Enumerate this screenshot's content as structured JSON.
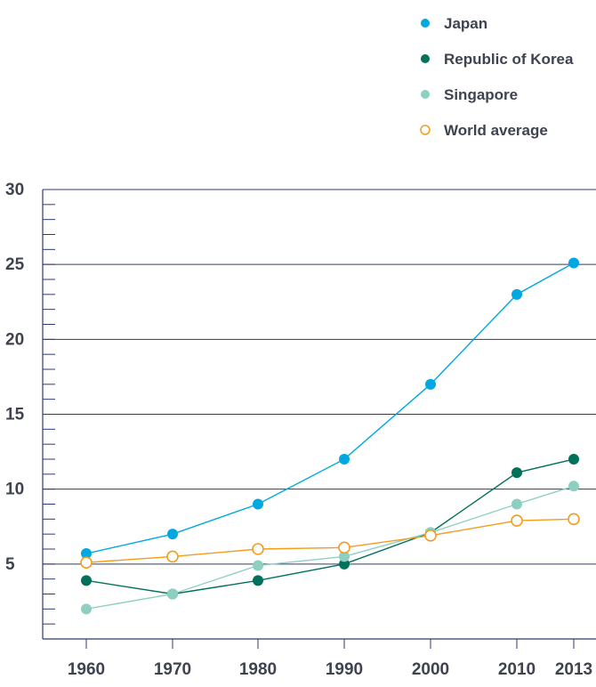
{
  "chart_data": {
    "type": "line",
    "title": "",
    "xlabel": "",
    "ylabel": "",
    "x": [
      1960,
      1970,
      1980,
      1990,
      2000,
      2010,
      2013
    ],
    "x_tick_labels": [
      "1960",
      "1970",
      "1980",
      "1990",
      "2000",
      "2010",
      "2013"
    ],
    "ylim": [
      0,
      30
    ],
    "y_ticks": [
      5,
      10,
      15,
      20,
      25,
      30
    ],
    "y_tick_labels": [
      "5",
      "10",
      "15",
      "20",
      "25",
      "30"
    ],
    "grid": "horizontal",
    "legend_position": "top-right",
    "series": [
      {
        "name": "Japan",
        "color": "#00a8e1",
        "marker": "filled",
        "values": [
          5.7,
          7.0,
          9.0,
          12.0,
          17.0,
          23.0,
          25.1
        ]
      },
      {
        "name": "Republic of Korea",
        "color": "#00715b",
        "marker": "filled",
        "values": [
          3.9,
          3.0,
          3.9,
          5.0,
          7.1,
          11.1,
          12.0
        ]
      },
      {
        "name": "Singapore",
        "color": "#8dd0c2",
        "marker": "filled",
        "values": [
          2.0,
          3.0,
          4.9,
          5.5,
          7.1,
          9.0,
          10.2
        ]
      },
      {
        "name": "World average",
        "color": "#f39c1e",
        "marker": "hollow",
        "values": [
          5.1,
          5.5,
          6.0,
          6.1,
          6.9,
          7.9,
          8.0
        ]
      }
    ]
  }
}
